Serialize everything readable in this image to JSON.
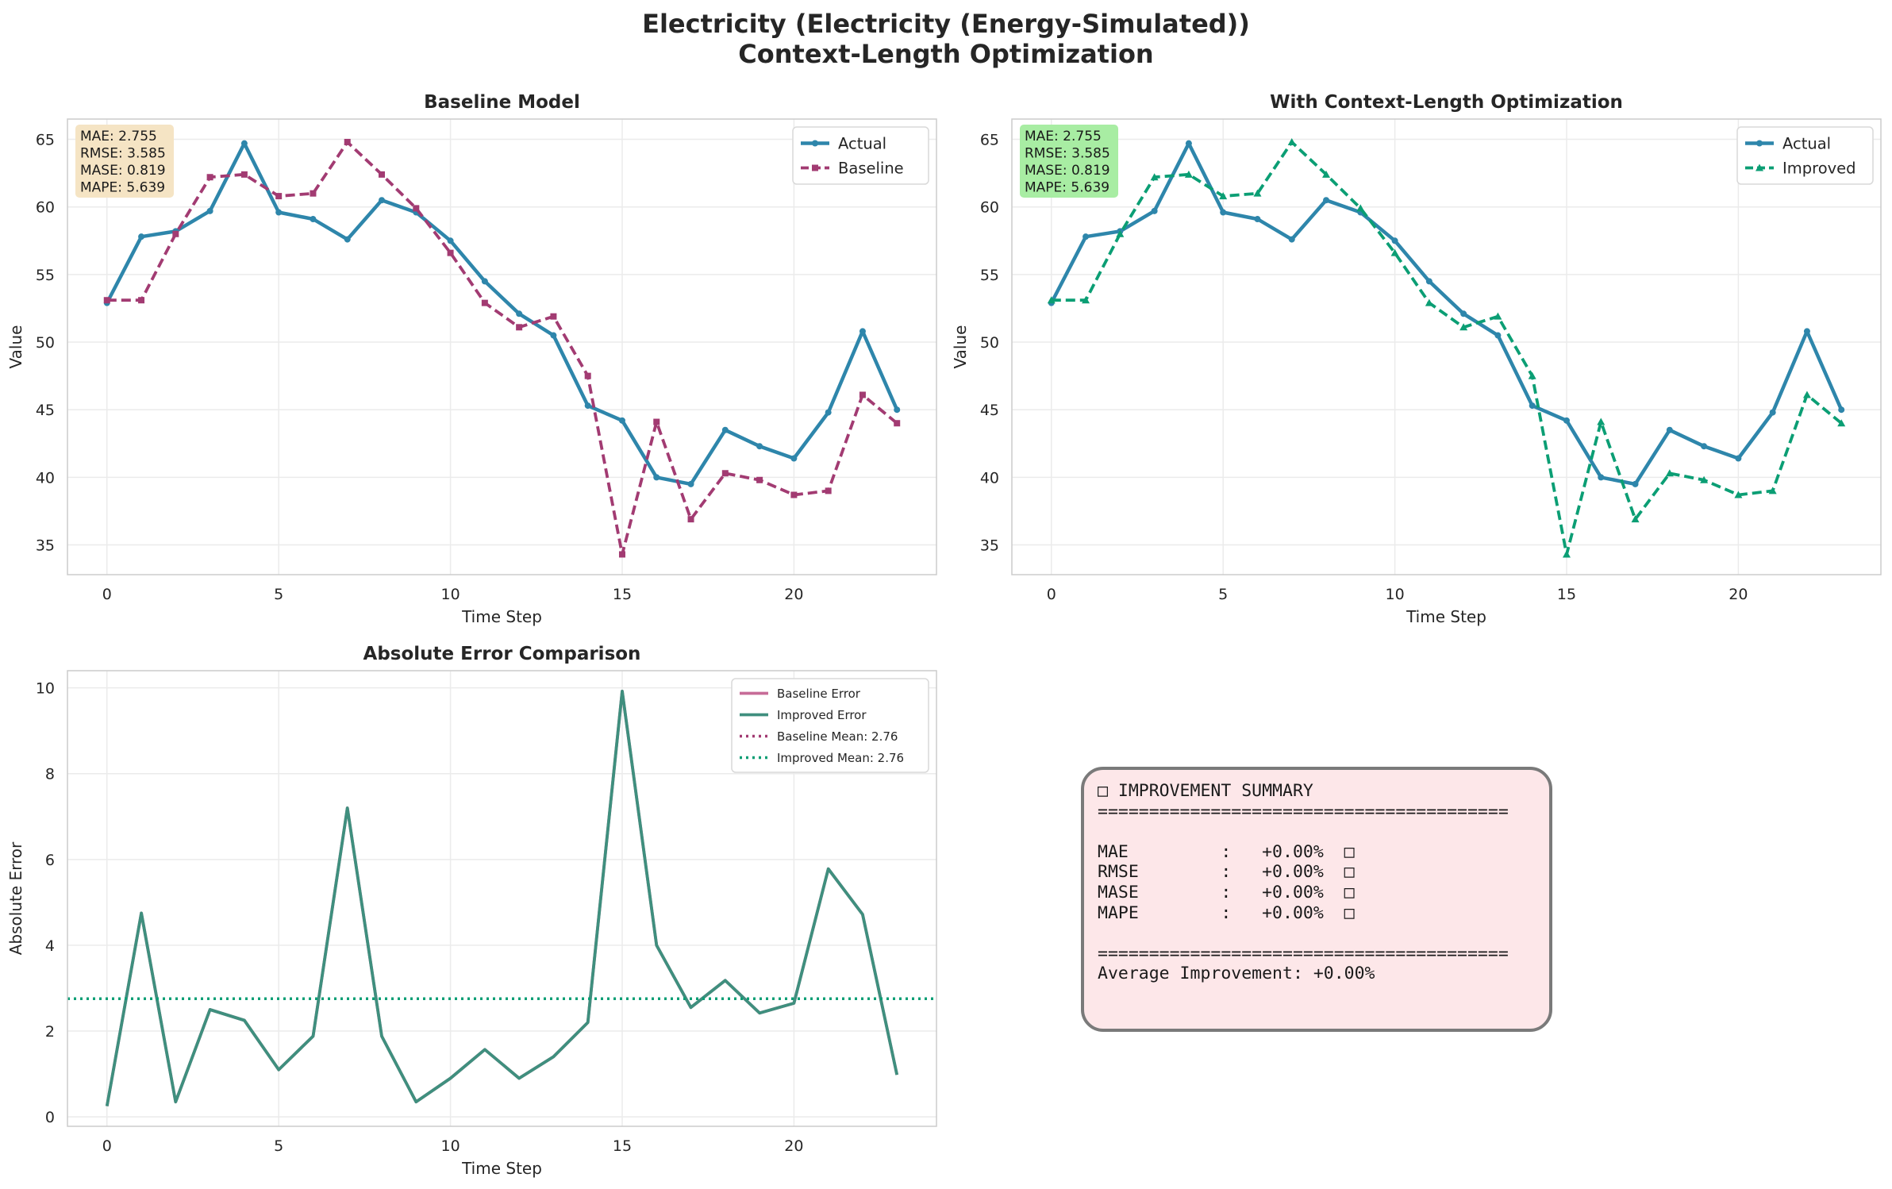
{
  "figure": {
    "title_line1": "Electricity (Electricity (Energy-Simulated))",
    "title_line2": "Context-Length Optimization"
  },
  "colors": {
    "actual": "#2e86ab",
    "baseline": "#a23b72",
    "improved": "#0b9e74",
    "baseline_error": "#c76c98",
    "improved_error": "#3f8f7e",
    "baseline_metrics_box": "#f5e4c4",
    "improved_metrics_box": "#a8eda3",
    "summary_box": "#fde7e9"
  },
  "chart_data": [
    {
      "id": "baseline",
      "type": "line",
      "title": "Baseline Model",
      "xlabel": "Time Step",
      "ylabel": "Value",
      "xlim": [
        -1.15,
        24.15
      ],
      "ylim": [
        32.8,
        66.5
      ],
      "xticks": [
        0,
        5,
        10,
        15,
        20
      ],
      "yticks": [
        35,
        40,
        45,
        50,
        55,
        60,
        65
      ],
      "grid": true,
      "legend_loc": "upper right",
      "metrics_box": "MAE: 2.755\nRMSE: 3.585\nMASE: 0.819\nMAPE: 5.639",
      "x": [
        0,
        1,
        2,
        3,
        4,
        5,
        6,
        7,
        8,
        9,
        10,
        11,
        12,
        13,
        14,
        15,
        16,
        17,
        18,
        19,
        20,
        21,
        22,
        23
      ],
      "series": [
        {
          "name": "Actual",
          "style": "solid",
          "marker": "circle",
          "values": [
            52.9,
            57.8,
            58.2,
            59.7,
            64.7,
            59.6,
            59.1,
            57.6,
            60.5,
            59.6,
            57.5,
            54.5,
            52.1,
            50.5,
            45.3,
            44.2,
            40.0,
            39.5,
            43.5,
            42.3,
            41.4,
            44.8,
            50.8,
            45.0
          ]
        },
        {
          "name": "Baseline",
          "style": "dashed",
          "marker": "square",
          "values": [
            53.1,
            53.1,
            58.0,
            62.2,
            62.4,
            60.8,
            61.0,
            64.8,
            62.4,
            59.9,
            56.6,
            52.9,
            51.1,
            51.9,
            47.5,
            34.3,
            44.1,
            36.9,
            40.3,
            39.8,
            38.7,
            39.0,
            46.1,
            44.0
          ]
        }
      ]
    },
    {
      "id": "improved",
      "type": "line",
      "title": "With Context-Length Optimization",
      "xlabel": "Time Step",
      "ylabel": "Value",
      "xlim": [
        -1.15,
        24.15
      ],
      "ylim": [
        32.8,
        66.5
      ],
      "xticks": [
        0,
        5,
        10,
        15,
        20
      ],
      "yticks": [
        35,
        40,
        45,
        50,
        55,
        60,
        65
      ],
      "grid": true,
      "legend_loc": "upper right",
      "metrics_box": "MAE: 2.755\nRMSE: 3.585\nMASE: 0.819\nMAPE: 5.639",
      "x": [
        0,
        1,
        2,
        3,
        4,
        5,
        6,
        7,
        8,
        9,
        10,
        11,
        12,
        13,
        14,
        15,
        16,
        17,
        18,
        19,
        20,
        21,
        22,
        23
      ],
      "series": [
        {
          "name": "Actual",
          "style": "solid",
          "marker": "circle",
          "values": [
            52.9,
            57.8,
            58.2,
            59.7,
            64.7,
            59.6,
            59.1,
            57.6,
            60.5,
            59.6,
            57.5,
            54.5,
            52.1,
            50.5,
            45.3,
            44.2,
            40.0,
            39.5,
            43.5,
            42.3,
            41.4,
            44.8,
            50.8,
            45.0
          ]
        },
        {
          "name": "Improved",
          "style": "dashed",
          "marker": "triangle",
          "values": [
            53.1,
            53.1,
            58.0,
            62.2,
            62.4,
            60.8,
            61.0,
            64.8,
            62.4,
            59.9,
            56.6,
            52.9,
            51.1,
            51.9,
            47.5,
            34.3,
            44.1,
            36.9,
            40.3,
            39.8,
            38.7,
            39.0,
            46.1,
            44.0
          ]
        }
      ]
    },
    {
      "id": "error",
      "type": "line",
      "title": "Absolute Error Comparison",
      "xlabel": "Time Step",
      "ylabel": "Absolute Error",
      "xlim": [
        -1.15,
        24.15
      ],
      "ylim": [
        -0.22,
        10.4
      ],
      "xticks": [
        0,
        5,
        10,
        15,
        20
      ],
      "yticks": [
        0,
        2,
        4,
        6,
        8,
        10
      ],
      "grid": true,
      "legend_loc": "upper right",
      "x": [
        0,
        1,
        2,
        3,
        4,
        5,
        6,
        7,
        8,
        9,
        10,
        11,
        12,
        13,
        14,
        15,
        16,
        17,
        18,
        19,
        20,
        21,
        22,
        23
      ],
      "series": [
        {
          "name": "Baseline Error",
          "style": "solid",
          "values": [
            0.25,
            4.75,
            0.35,
            2.5,
            2.25,
            1.1,
            1.88,
            7.2,
            1.88,
            0.35,
            0.9,
            1.57,
            0.9,
            1.4,
            2.2,
            9.92,
            4.0,
            2.55,
            3.18,
            2.42,
            2.65,
            5.78,
            4.72,
            0.98
          ]
        },
        {
          "name": "Improved Error",
          "style": "solid",
          "values": [
            0.25,
            4.75,
            0.35,
            2.5,
            2.25,
            1.1,
            1.88,
            7.2,
            1.88,
            0.35,
            0.9,
            1.57,
            0.9,
            1.4,
            2.2,
            9.92,
            4.0,
            2.55,
            3.18,
            2.42,
            2.65,
            5.78,
            4.72,
            0.98
          ]
        },
        {
          "name": "Baseline Mean: 2.76",
          "style": "dotted",
          "constant": 2.755
        },
        {
          "name": "Improved Mean: 2.76",
          "style": "dotted",
          "constant": 2.755
        }
      ]
    }
  ],
  "summary": {
    "text": "□ IMPROVEMENT SUMMARY\n========================================\n\nMAE         :   +0.00%  □\nRMSE        :   +0.00%  □\nMASE        :   +0.00%  □\nMAPE        :   +0.00%  □\n\n========================================\nAverage Improvement: +0.00%"
  }
}
